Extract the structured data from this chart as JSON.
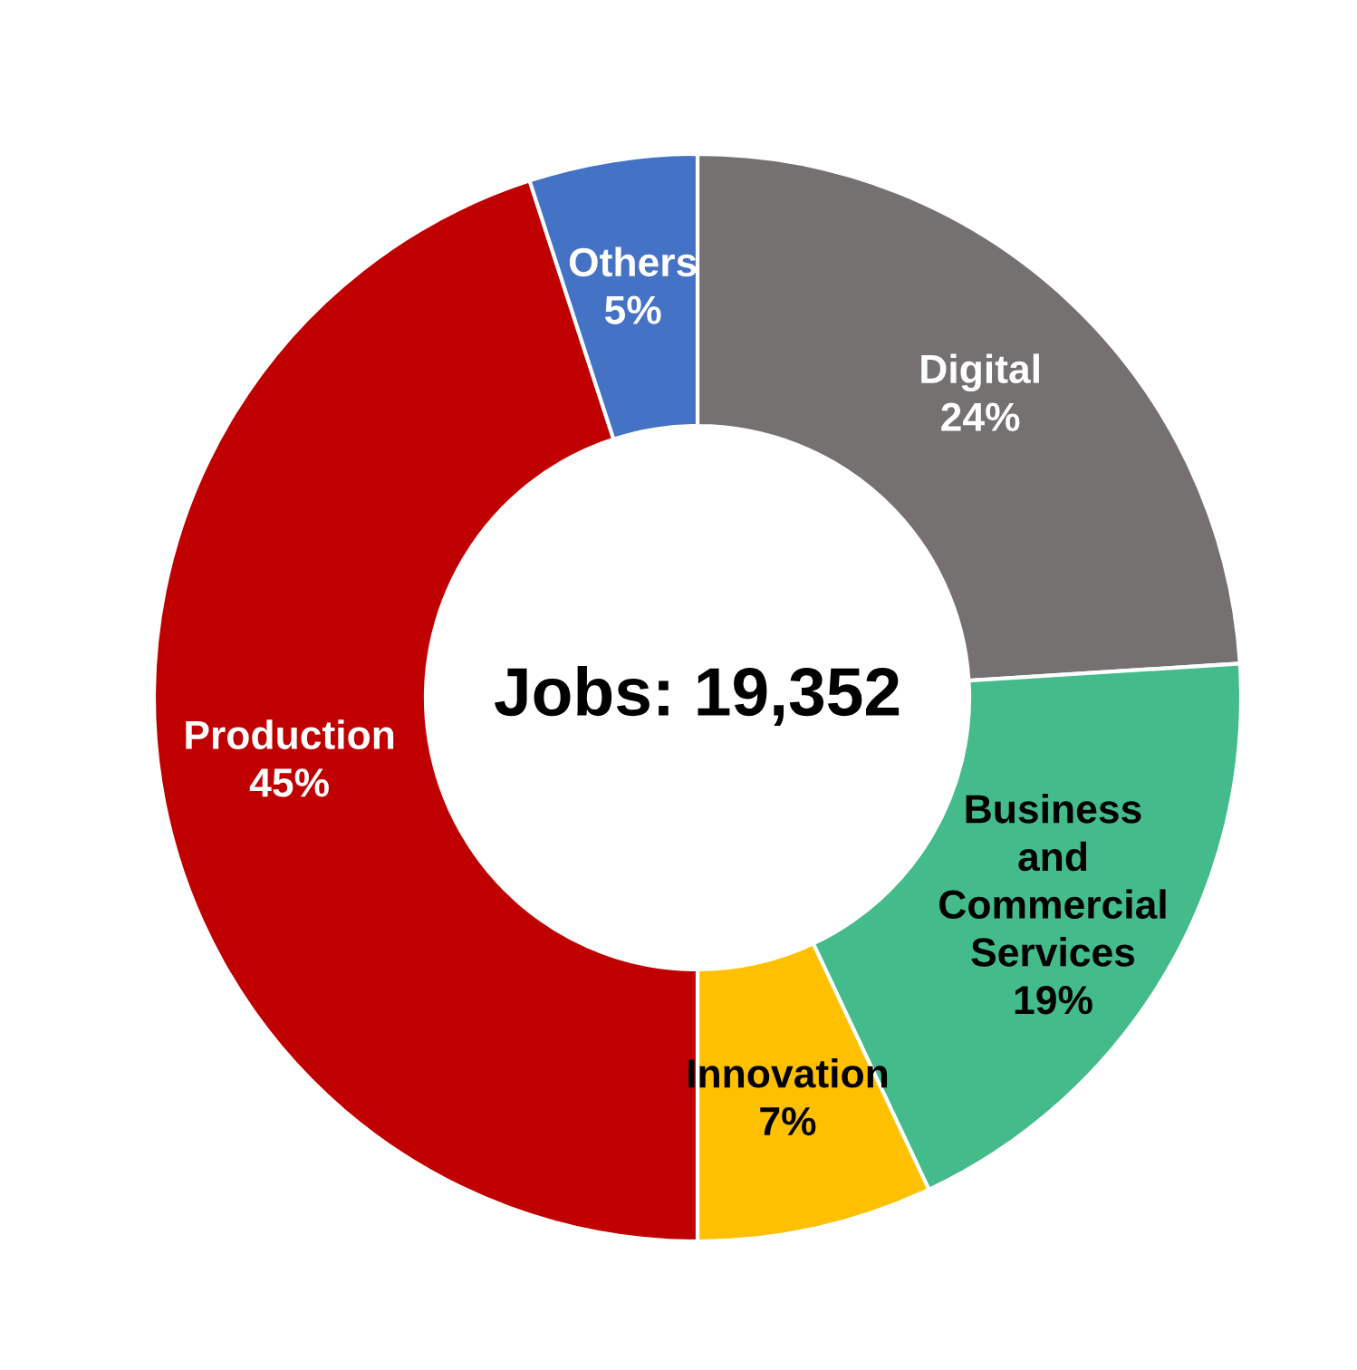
{
  "chart_data": {
    "type": "donut",
    "title": "Jobs: 19,352",
    "categories": [
      "Digital",
      "Business\nand\nCommercial\nServices",
      "Innovation",
      "Production",
      "Others"
    ],
    "values": [
      24,
      19,
      7,
      45,
      5
    ],
    "colors": [
      "#767171",
      "#43bb8a",
      "#ffc000",
      "#c00000",
      "#4472c4"
    ],
    "value_labels": [
      "24%",
      "19%",
      "7%",
      "45%",
      "5%"
    ],
    "legend": false
  }
}
